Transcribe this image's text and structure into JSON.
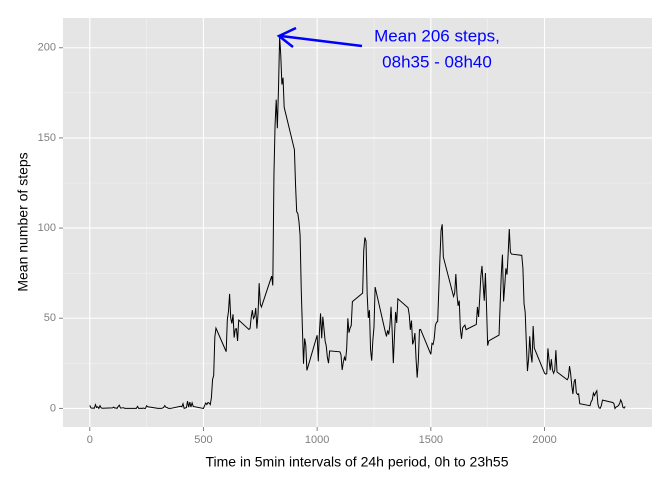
{
  "chart_data": {
    "type": "line",
    "xlabel": "Time in 5min intervals of 24h period, 0h to 23h55",
    "ylabel": "Mean number of steps",
    "annotation": [
      "Mean 206 steps,",
      "08h35 - 08h40"
    ],
    "annotation_color": "#0000ff",
    "color": "#000000",
    "grid": true,
    "xlim": [
      -117.75,
      2472.75
    ],
    "xticks": [
      0,
      500,
      1000,
      1500,
      2000
    ],
    "ylim": [
      -10.3,
      216.5
    ],
    "yticks": [
      0,
      50,
      100,
      150,
      200
    ],
    "x": [
      0,
      5,
      10,
      15,
      20,
      25,
      30,
      35,
      40,
      45,
      50,
      55,
      100,
      105,
      110,
      115,
      120,
      125,
      130,
      135,
      140,
      145,
      150,
      155,
      200,
      205,
      210,
      215,
      220,
      225,
      230,
      235,
      240,
      245,
      250,
      255,
      300,
      305,
      310,
      315,
      320,
      325,
      330,
      335,
      340,
      345,
      350,
      355,
      400,
      405,
      410,
      415,
      420,
      425,
      430,
      435,
      440,
      445,
      450,
      455,
      500,
      505,
      510,
      515,
      520,
      525,
      530,
      535,
      540,
      545,
      550,
      555,
      600,
      605,
      610,
      615,
      620,
      625,
      630,
      635,
      640,
      645,
      650,
      655,
      700,
      705,
      710,
      715,
      720,
      725,
      730,
      735,
      740,
      745,
      750,
      755,
      800,
      805,
      810,
      815,
      820,
      825,
      830,
      835,
      840,
      845,
      850,
      855,
      900,
      905,
      910,
      915,
      920,
      925,
      930,
      935,
      940,
      945,
      950,
      955,
      1000,
      1005,
      1010,
      1015,
      1020,
      1025,
      1030,
      1035,
      1040,
      1045,
      1050,
      1055,
      1100,
      1105,
      1110,
      1115,
      1120,
      1125,
      1130,
      1135,
      1140,
      1145,
      1150,
      1155,
      1200,
      1205,
      1210,
      1215,
      1220,
      1225,
      1230,
      1235,
      1240,
      1245,
      1250,
      1255,
      1300,
      1305,
      1310,
      1315,
      1320,
      1325,
      1330,
      1335,
      1340,
      1345,
      1350,
      1355,
      1400,
      1405,
      1410,
      1415,
      1420,
      1425,
      1430,
      1435,
      1440,
      1445,
      1450,
      1455,
      1500,
      1505,
      1510,
      1515,
      1520,
      1525,
      1530,
      1535,
      1540,
      1545,
      1550,
      1555,
      1600,
      1605,
      1610,
      1615,
      1620,
      1625,
      1630,
      1635,
      1640,
      1645,
      1650,
      1655,
      1700,
      1705,
      1710,
      1715,
      1720,
      1725,
      1730,
      1735,
      1740,
      1745,
      1750,
      1755,
      1800,
      1805,
      1810,
      1815,
      1820,
      1825,
      1830,
      1835,
      1840,
      1845,
      1850,
      1855,
      1900,
      1905,
      1910,
      1915,
      1920,
      1925,
      1930,
      1935,
      1940,
      1945,
      1950,
      1955,
      2000,
      2005,
      2010,
      2015,
      2020,
      2025,
      2030,
      2035,
      2040,
      2045,
      2050,
      2055,
      2100,
      2105,
      2110,
      2115,
      2120,
      2125,
      2130,
      2135,
      2140,
      2145,
      2150,
      2155,
      2200,
      2205,
      2210,
      2215,
      2220,
      2225,
      2230,
      2235,
      2240,
      2245,
      2250,
      2255,
      2300,
      2305,
      2310,
      2315,
      2320,
      2325,
      2330,
      2335,
      2340,
      2345,
      2350,
      2355
    ],
    "values": [
      1.7,
      0.3,
      0.1,
      0.2,
      0.1,
      2.1,
      0.5,
      0.9,
      0,
      1.5,
      0.3,
      0.1,
      0.3,
      0.7,
      0.2,
      0.3,
      0,
      1.1,
      1.8,
      0.2,
      0.2,
      0.4,
      0.3,
      0,
      0,
      0,
      1.1,
      0,
      0,
      0.1,
      0,
      0.2,
      0,
      0,
      1.5,
      0.9,
      0,
      0,
      0,
      0,
      0.2,
      0.6,
      1.6,
      0.6,
      0.5,
      0.1,
      0,
      0,
      1.2,
      0.9,
      2.6,
      0,
      0.3,
      0.4,
      4.1,
      0.7,
      3.5,
      0.8,
      3.1,
      1.1,
      0,
      1.6,
      3,
      2.2,
      3.3,
      3,
      2.1,
      6.1,
      16,
      18.3,
      39.5,
      44.5,
      31.5,
      49.3,
      53.8,
      63.5,
      50,
      47.1,
      52.2,
      39.3,
      44,
      44.2,
      37.4,
      49,
      43.8,
      44.4,
      50.5,
      54.5,
      49.9,
      51,
      55.7,
      44.3,
      52.3,
      69.5,
      57.8,
      56.2,
      73.4,
      68.2,
      129.4,
      157.5,
      171.2,
      155.4,
      177.3,
      206.2,
      195.9,
      179.6,
      183.4,
      167,
      143.5,
      124,
      109.1,
      108.1,
      103.7,
      96,
      66.2,
      45.2,
      24.8,
      38.8,
      35,
      21.1,
      40.6,
      26.1,
      42.4,
      52.7,
      38.9,
      50.8,
      44.3,
      37.4,
      34.7,
      28.3,
      25.1,
      31.9,
      31.4,
      29.7,
      21.3,
      25.5,
      28.4,
      26.5,
      33.4,
      50,
      42,
      44.6,
      46,
      59.2,
      63.9,
      87.7,
      94.8,
      92.8,
      63.4,
      50.2,
      54.5,
      32.4,
      26.5,
      37.7,
      45.1,
      67.3,
      42.3,
      39.9,
      43.3,
      41,
      46.2,
      56.4,
      42.8,
      25.1,
      40,
      53.5,
      47.4,
      60.8,
      55.8,
      52,
      43.6,
      48.7,
      35.5,
      37.5,
      41.8,
      27.5,
      17.1,
      26.1,
      43.6,
      43.8,
      30,
      36.1,
      35.5,
      38.8,
      46,
      47.8,
      48.1,
      65.3,
      82.9,
      98.7,
      102.1,
      84,
      62.1,
      64.1,
      74.5,
      63.2,
      56.9,
      59.8,
      43.9,
      38.6,
      44.7,
      45.5,
      46.2,
      43.7,
      46.6,
      56.3,
      50.7,
      61.2,
      73.4,
      79,
      68.9,
      59.7,
      75.1,
      56.5,
      34.8,
      37.5,
      40.7,
      58,
      74.7,
      85.3,
      59.3,
      67.8,
      77.7,
      74.2,
      85.3,
      99.5,
      86.6,
      85.6,
      84.9,
      77.8,
      58,
      53.4,
      36.3,
      20.7,
      27.4,
      40,
      30.2,
      25.5,
      45.7,
      33.5,
      19.6,
      19,
      19.3,
      33.3,
      26.8,
      21.2,
      27.3,
      21.3,
      19.5,
      21.3,
      32.3,
      20.2,
      15.9,
      17.2,
      23.5,
      19.2,
      12.5,
      8,
      14.7,
      16.3,
      8.7,
      7.8,
      8.1,
      2.6,
      1.5,
      3.7,
      4.8,
      8.5,
      7.1,
      8.7,
      9.8,
      2.2,
      0.3,
      0.1,
      1.6,
      4.6,
      3.3,
      2.8,
      0,
      0.8,
      1,
      1.6,
      2.6,
      4.7,
      3.3,
      0.6,
      0.2,
      1.1
    ]
  }
}
